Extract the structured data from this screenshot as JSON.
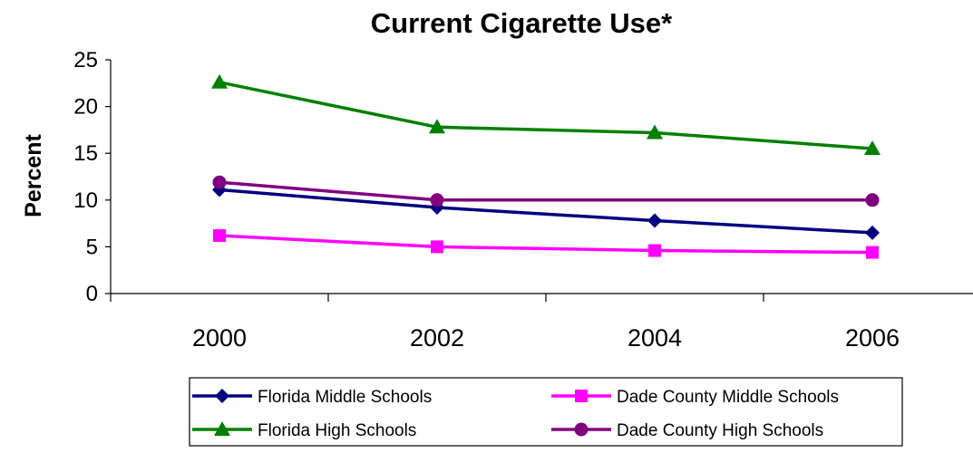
{
  "chart_data": {
    "type": "line",
    "title": "Current Cigarette Use*",
    "xlabel": "",
    "ylabel": "Percent",
    "categories": [
      "2000",
      "2002",
      "2004",
      "2006"
    ],
    "ylim": [
      0,
      25
    ],
    "yticks": [
      0,
      5,
      10,
      15,
      20,
      25
    ],
    "grid": false,
    "legend_position": "bottom",
    "series": [
      {
        "name": "Florida Middle Schools",
        "values": [
          11.1,
          9.2,
          7.8,
          6.5
        ],
        "color": "#000080",
        "marker": "diamond"
      },
      {
        "name": "Dade County Middle Schools",
        "values": [
          6.2,
          5.0,
          4.6,
          4.4
        ],
        "color": "#ff00ff",
        "marker": "square"
      },
      {
        "name": "Florida High Schools",
        "values": [
          22.6,
          17.8,
          17.2,
          15.5
        ],
        "color": "#008000",
        "marker": "triangle"
      },
      {
        "name": "Dade County High Schools",
        "values": [
          11.9,
          10.0,
          10.0,
          10.0
        ],
        "color": "#800080",
        "marker": "circle",
        "show_markers": [
          true,
          true,
          false,
          true
        ]
      }
    ]
  }
}
